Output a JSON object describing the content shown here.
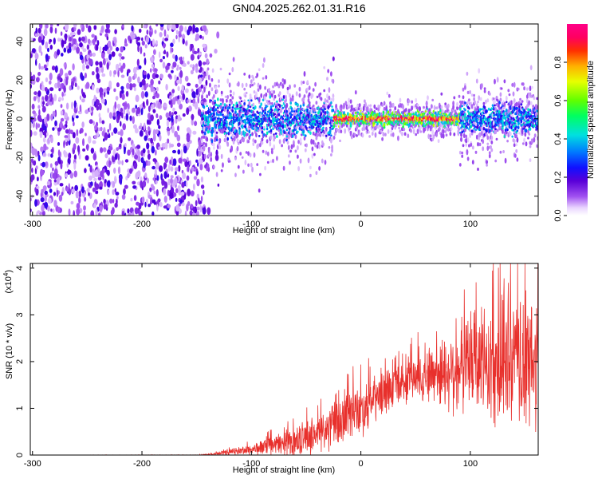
{
  "title": "GN04.2025.262.01.31.R16",
  "colors": {
    "trace": "#e8302c",
    "frame": "#000000"
  },
  "chart_data": [
    {
      "type": "heatmap",
      "xlabel": "Height of straight line (km)",
      "ylabel": "Frequency (Hz)",
      "xlim": [
        -302,
        162
      ],
      "ylim": [
        -50,
        49
      ],
      "xticks": [
        -300,
        -200,
        -100,
        0,
        100
      ],
      "xtick_labels": [
        "-300",
        "-200",
        "-100",
        "0",
        "100"
      ],
      "yticks": [
        -40,
        -20,
        0,
        20,
        40
      ],
      "ytick_labels": [
        "-40",
        "-20",
        "0",
        "20",
        "40"
      ],
      "colorbar": {
        "label": "Normalized spectral amplitude",
        "range": [
          0,
          1
        ],
        "ticks": [
          0.0,
          0.2,
          0.4,
          0.6,
          0.8
        ],
        "tick_labels": [
          "0.0",
          "0.2",
          "0.4",
          "0.6",
          "0.8"
        ]
      },
      "features": {
        "noise_region_x": [
          -302,
          -140
        ],
        "signal_band_center_hz": 0,
        "signal_band_halfwidth_hz": [
          8,
          3
        ],
        "isolated_blip": {
          "x": -25,
          "y": 31
        }
      }
    },
    {
      "type": "line",
      "xlabel": "Height of straight line (km)",
      "ylabel": "SNR (10 * v/v)",
      "yscale_label": "(x10",
      "yscale_exp": "4",
      "yscale_close": ")",
      "xlim": [
        -302,
        162
      ],
      "ylim": [
        0,
        4.1
      ],
      "xticks": [
        -300,
        -200,
        -100,
        0,
        100
      ],
      "xtick_labels": [
        "-300",
        "-200",
        "-100",
        "0",
        "100"
      ],
      "yticks": [
        0,
        1,
        2,
        3,
        4
      ],
      "ytick_labels": [
        "0",
        "1",
        "2",
        "3",
        "4"
      ],
      "envelope": {
        "x": [
          -302,
          -150,
          -135,
          -100,
          -60,
          -30,
          0,
          30,
          55,
          80,
          100,
          120,
          140,
          162
        ],
        "mean": [
          0.0,
          0.0,
          0.02,
          0.12,
          0.3,
          0.55,
          1.0,
          1.45,
          1.7,
          1.8,
          1.9,
          1.95,
          1.95,
          1.9
        ],
        "spread": [
          0.0,
          0.005,
          0.02,
          0.1,
          0.25,
          0.4,
          0.5,
          0.35,
          0.45,
          0.7,
          0.9,
          1.1,
          1.2,
          1.2
        ]
      }
    }
  ]
}
